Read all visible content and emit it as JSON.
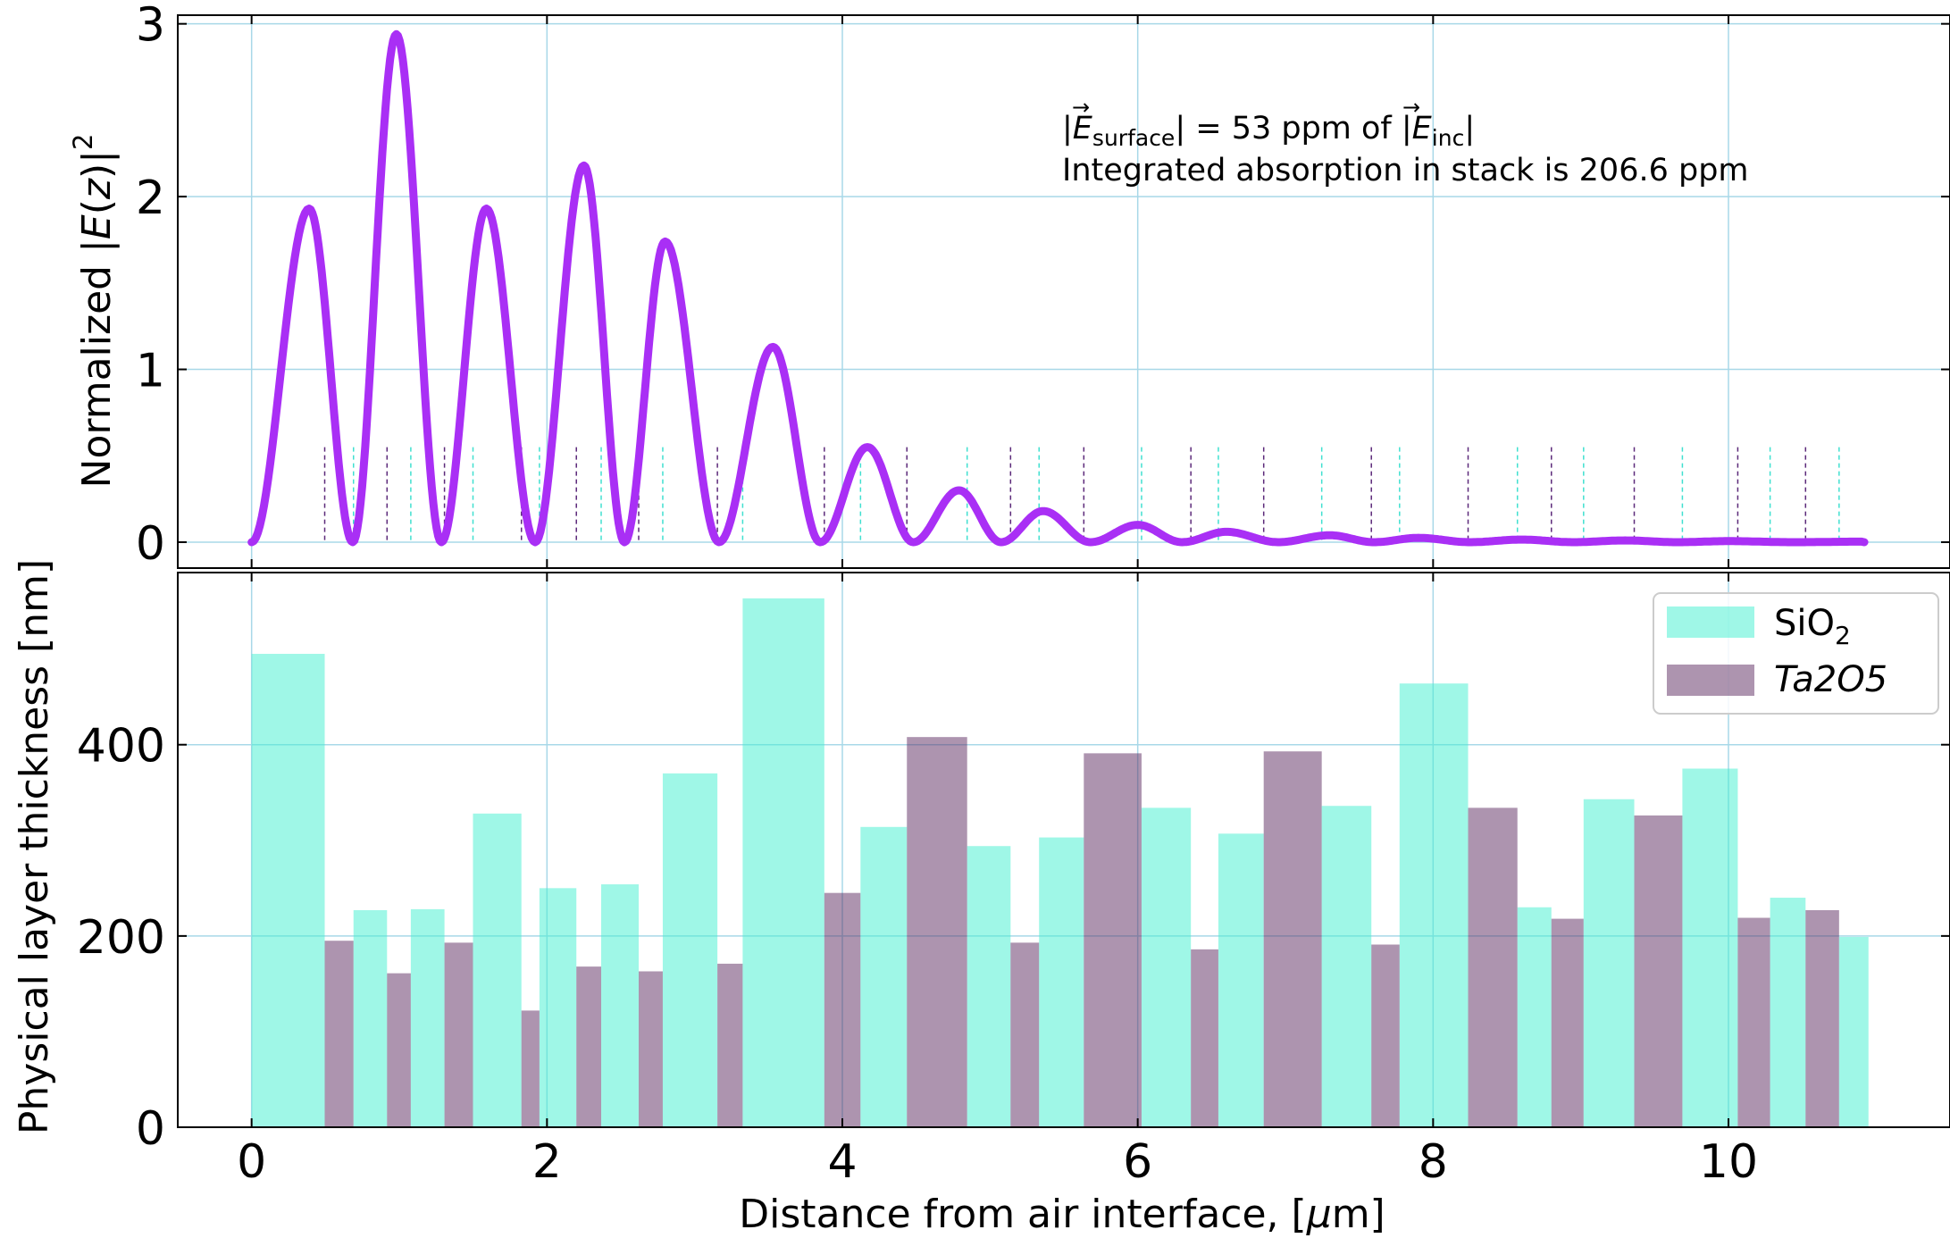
{
  "chart_data": [
    {
      "type": "line",
      "ylabel": "Normalized |E(z)|²",
      "ylabel_main": "Normalized |",
      "ylabel_var": "E",
      "ylabel_paren": "(",
      "ylabel_z": "z",
      "ylabel_close": ")|",
      "ylabel_sup": "2",
      "xlim": [
        -0.5,
        11.5
      ],
      "ylim": [
        -0.15,
        3.05
      ],
      "yticks": [
        0,
        1,
        2,
        3
      ],
      "ytick_labels": [
        "0",
        "1",
        "2",
        "3"
      ],
      "grid": true,
      "line_color": "#a92ff5",
      "annotation": {
        "line1": "|Ē_surface| = 53 ppm of |E_inc|",
        "abs_open": "|",
        "e_var": "E",
        "e_sub": "surface",
        "eq_text": "| = 53 ppm of ",
        "inc_var": "E",
        "inc_sub": "inc",
        "inc_close": "|",
        "line2": "Integrated absorption in stack is 206.6 ppm"
      },
      "field_peaks": [
        {
          "x": 0.39,
          "y": 1.93
        },
        {
          "x": 0.98,
          "y": 2.94
        },
        {
          "x": 1.59,
          "y": 1.93
        },
        {
          "x": 2.25,
          "y": 2.18
        },
        {
          "x": 2.8,
          "y": 1.74
        },
        {
          "x": 3.53,
          "y": 1.13
        },
        {
          "x": 4.17,
          "y": 0.55
        },
        {
          "x": 4.79,
          "y": 0.3
        },
        {
          "x": 5.36,
          "y": 0.18
        },
        {
          "x": 6.0,
          "y": 0.1
        },
        {
          "x": 6.6,
          "y": 0.06
        },
        {
          "x": 7.3,
          "y": 0.04
        },
        {
          "x": 7.9,
          "y": 0.025
        },
        {
          "x": 8.6,
          "y": 0.015
        },
        {
          "x": 9.3,
          "y": 0.01
        },
        {
          "x": 10.0,
          "y": 0.006
        },
        {
          "x": 10.9,
          "y": 0.003
        }
      ],
      "interface_marker_height": 0.55,
      "interface_colors": {
        "SiO2": "#40e0d0",
        "Ta2O5": "#5c2a7a"
      }
    },
    {
      "type": "bar",
      "xlabel": "Distance from air interface, [μm]",
      "xlabel_main": "Distance from air interface, [",
      "xlabel_mu": "μ",
      "xlabel_end": "m]",
      "ylabel": "Physical layer thickness [nm]",
      "xlim": [
        -0.5,
        11.5
      ],
      "ylim": [
        0,
        580
      ],
      "xticks": [
        0,
        2,
        4,
        6,
        8,
        10
      ],
      "xtick_labels": [
        "0",
        "2",
        "4",
        "6",
        "8",
        "10"
      ],
      "yticks": [
        0,
        200,
        400
      ],
      "ytick_labels": [
        "0",
        "200",
        "400"
      ],
      "grid": true,
      "legend_position": "top-right",
      "series": [
        {
          "name": "SiO",
          "name_sub": "2",
          "color": "#40f0d0"
        },
        {
          "name": "Ta2O5",
          "color": "#5c2a60"
        }
      ],
      "layers": [
        {
          "material": "SiO2",
          "thickness_nm": 495
        },
        {
          "material": "Ta2O5",
          "thickness_nm": 195
        },
        {
          "material": "SiO2",
          "thickness_nm": 227
        },
        {
          "material": "Ta2O5",
          "thickness_nm": 161
        },
        {
          "material": "SiO2",
          "thickness_nm": 228
        },
        {
          "material": "Ta2O5",
          "thickness_nm": 193
        },
        {
          "material": "SiO2",
          "thickness_nm": 328
        },
        {
          "material": "Ta2O5",
          "thickness_nm": 122
        },
        {
          "material": "SiO2",
          "thickness_nm": 250
        },
        {
          "material": "Ta2O5",
          "thickness_nm": 168
        },
        {
          "material": "SiO2",
          "thickness_nm": 254
        },
        {
          "material": "Ta2O5",
          "thickness_nm": 163
        },
        {
          "material": "SiO2",
          "thickness_nm": 370
        },
        {
          "material": "Ta2O5",
          "thickness_nm": 171
        },
        {
          "material": "SiO2",
          "thickness_nm": 553
        },
        {
          "material": "Ta2O5",
          "thickness_nm": 245
        },
        {
          "material": "SiO2",
          "thickness_nm": 314
        },
        {
          "material": "Ta2O5",
          "thickness_nm": 408
        },
        {
          "material": "SiO2",
          "thickness_nm": 294
        },
        {
          "material": "Ta2O5",
          "thickness_nm": 193
        },
        {
          "material": "SiO2",
          "thickness_nm": 303
        },
        {
          "material": "Ta2O5",
          "thickness_nm": 391
        },
        {
          "material": "SiO2",
          "thickness_nm": 334
        },
        {
          "material": "Ta2O5",
          "thickness_nm": 186
        },
        {
          "material": "SiO2",
          "thickness_nm": 307
        },
        {
          "material": "Ta2O5",
          "thickness_nm": 393
        },
        {
          "material": "SiO2",
          "thickness_nm": 336
        },
        {
          "material": "Ta2O5",
          "thickness_nm": 191
        },
        {
          "material": "SiO2",
          "thickness_nm": 464
        },
        {
          "material": "Ta2O5",
          "thickness_nm": 334
        },
        {
          "material": "SiO2",
          "thickness_nm": 230
        },
        {
          "material": "Ta2O5",
          "thickness_nm": 218
        },
        {
          "material": "SiO2",
          "thickness_nm": 343
        },
        {
          "material": "Ta2O5",
          "thickness_nm": 326
        },
        {
          "material": "SiO2",
          "thickness_nm": 375
        },
        {
          "material": "Ta2O5",
          "thickness_nm": 219
        },
        {
          "material": "SiO2",
          "thickness_nm": 240
        },
        {
          "material": "Ta2O5",
          "thickness_nm": 227
        },
        {
          "material": "SiO2",
          "thickness_nm": 199
        }
      ]
    }
  ]
}
